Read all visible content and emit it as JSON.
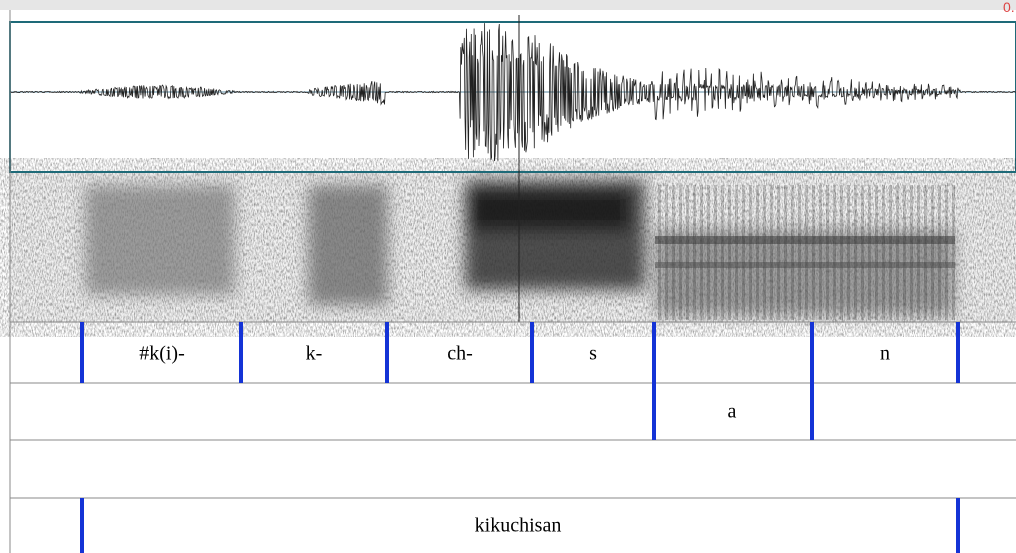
{
  "time_readout": "0.",
  "tiers": [
    {
      "intervals": [
        "#k(i)-",
        "k-",
        "ch-",
        "s",
        "n"
      ]
    },
    {
      "intervals": [
        "a"
      ]
    },
    {
      "intervals": [
        "kikuchisan"
      ]
    }
  ]
}
